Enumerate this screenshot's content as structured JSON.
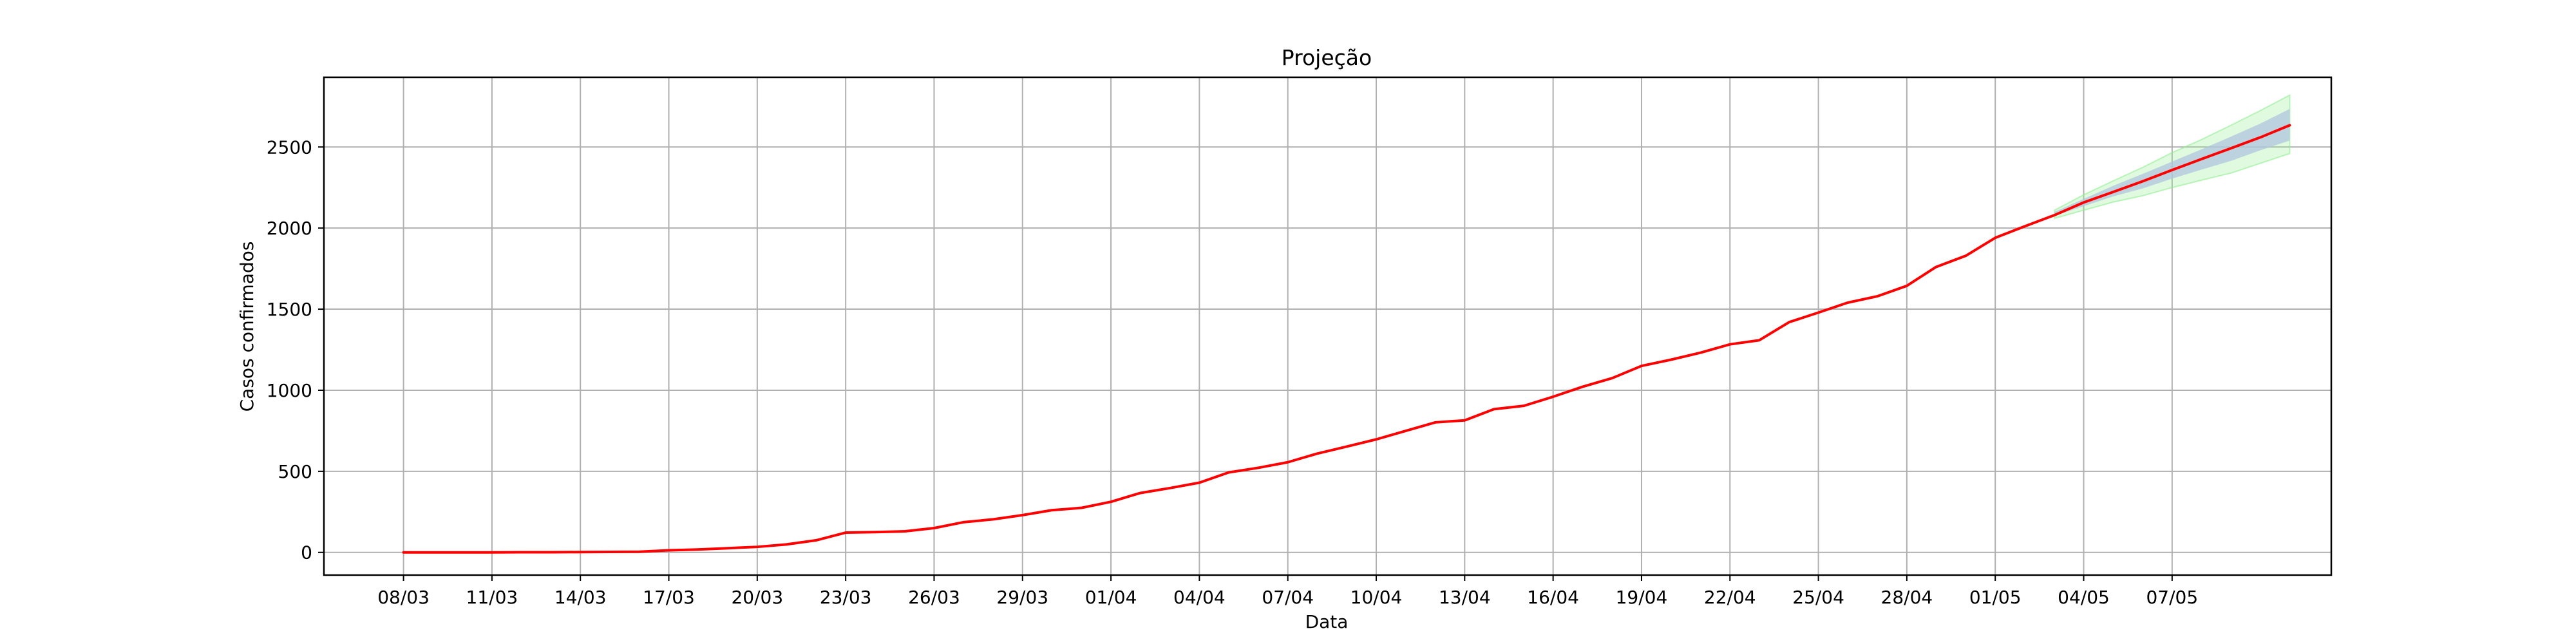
{
  "chart_data": {
    "type": "line",
    "title": "Projeção",
    "xlabel": "Data",
    "ylabel": "Casos confirmados",
    "grid": true,
    "x_categories": [
      "08/03",
      "11/03",
      "14/03",
      "17/03",
      "20/03",
      "23/03",
      "26/03",
      "29/03",
      "01/04",
      "04/04",
      "07/04",
      "10/04",
      "13/04",
      "16/04",
      "19/04",
      "22/04",
      "25/04",
      "28/04",
      "01/05",
      "04/05",
      "07/05"
    ],
    "x_range": [
      -0.9,
      21.8
    ],
    "ylim": [
      -140,
      2930
    ],
    "yticks": [
      0,
      500,
      1000,
      1500,
      2000,
      2500
    ],
    "colors": {
      "main_line": "#ff0000",
      "inner_band": "#b0c4de",
      "outer_band": "#90ee90"
    },
    "series": [
      {
        "values": [
          [
            0.0,
            0
          ],
          [
            0.33,
            0
          ],
          [
            0.67,
            0
          ],
          [
            1.0,
            0
          ],
          [
            1.33,
            1
          ],
          [
            1.67,
            1
          ],
          [
            2.0,
            2
          ],
          [
            2.33,
            3
          ],
          [
            2.67,
            4
          ],
          [
            3.0,
            13
          ],
          [
            3.33,
            18
          ],
          [
            3.67,
            26
          ],
          [
            4.0,
            34
          ],
          [
            4.33,
            49
          ],
          [
            4.67,
            75
          ],
          [
            5.0,
            122
          ],
          [
            5.33,
            125
          ],
          [
            5.67,
            130
          ],
          [
            6.0,
            150
          ],
          [
            6.33,
            186
          ],
          [
            6.67,
            204
          ],
          [
            7.0,
            230
          ],
          [
            7.33,
            260
          ],
          [
            7.67,
            275
          ],
          [
            8.0,
            312
          ],
          [
            8.33,
            366
          ],
          [
            8.67,
            397
          ],
          [
            9.0,
            430
          ],
          [
            9.33,
            493
          ],
          [
            9.67,
            522
          ],
          [
            10.0,
            556
          ],
          [
            10.33,
            609
          ],
          [
            10.67,
            653
          ],
          [
            11.0,
            697
          ],
          [
            11.33,
            749
          ],
          [
            11.67,
            802
          ],
          [
            12.0,
            814
          ],
          [
            12.33,
            883
          ],
          [
            12.67,
            904
          ],
          [
            13.0,
            960
          ],
          [
            13.33,
            1021
          ],
          [
            13.67,
            1075
          ],
          [
            14.0,
            1150
          ],
          [
            14.33,
            1188
          ],
          [
            14.67,
            1232
          ],
          [
            15.0,
            1283
          ],
          [
            15.33,
            1308
          ],
          [
            15.67,
            1420
          ],
          [
            16.0,
            1479
          ],
          [
            16.33,
            1540
          ],
          [
            16.67,
            1580
          ],
          [
            17.0,
            1644
          ],
          [
            17.33,
            1760
          ],
          [
            17.67,
            1830
          ],
          [
            18.0,
            1940
          ],
          [
            18.33,
            2010
          ],
          [
            18.67,
            2080
          ],
          [
            19.0,
            2158
          ],
          [
            19.33,
            2222
          ],
          [
            19.67,
            2289
          ],
          [
            20.0,
            2358
          ],
          [
            20.33,
            2425
          ],
          [
            20.67,
            2493
          ],
          [
            21.0,
            2560
          ],
          [
            21.33,
            2634
          ]
        ]
      }
    ],
    "bands": [
      {
        "x": [
          18.67,
          19.0,
          19.33,
          19.67,
          20.0,
          20.33,
          20.67,
          21.0,
          21.33
        ],
        "low": [
          2060,
          2110,
          2160,
          2200,
          2250,
          2295,
          2340,
          2400,
          2460
        ],
        "high": [
          2110,
          2205,
          2290,
          2375,
          2465,
          2545,
          2635,
          2725,
          2820
        ],
        "kind": "outer"
      },
      {
        "x": [
          18.67,
          19.0,
          19.33,
          19.67,
          20.0,
          20.33,
          20.67,
          21.0,
          21.33
        ],
        "low": [
          2075,
          2135,
          2195,
          2245,
          2305,
          2360,
          2415,
          2480,
          2540
        ],
        "high": [
          2100,
          2180,
          2260,
          2335,
          2410,
          2485,
          2565,
          2645,
          2735
        ],
        "kind": "inner"
      }
    ]
  }
}
